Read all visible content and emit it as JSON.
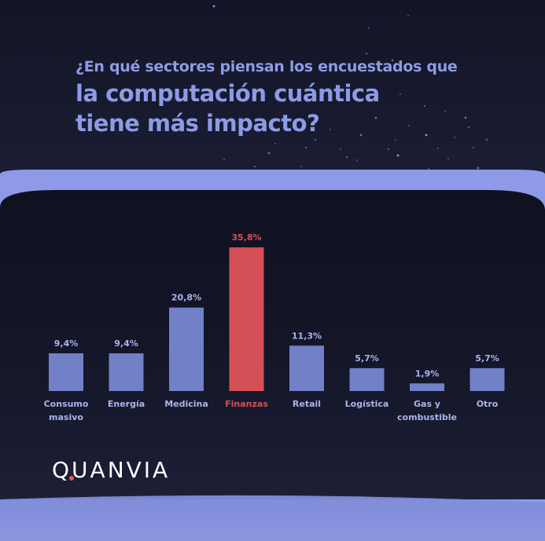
{
  "title": {
    "line1": "¿En qué sectores piensan los encuestados que",
    "line2": "la computación cuántica",
    "line3": "tiene más impacto?"
  },
  "brand": {
    "name": "QUANVIA",
    "accent_color": "#e0565a"
  },
  "colors": {
    "bar": "#7280c8",
    "highlight": "#d45056",
    "label": "#aab4ee",
    "title": "#8d9be6",
    "frame": "#8e9ae8"
  },
  "chart_data": {
    "type": "bar",
    "title": "",
    "xlabel": "",
    "ylabel": "",
    "ylim": [
      0,
      40
    ],
    "grid": false,
    "highlight_category": "Finanzas",
    "categories": [
      [
        "Consumo",
        "masivo"
      ],
      [
        "Energía"
      ],
      [
        "Medicina"
      ],
      [
        "Finanzas"
      ],
      [
        "Retail"
      ],
      [
        "Logística"
      ],
      [
        "Gas y",
        "combustible"
      ],
      [
        "Otro"
      ]
    ],
    "values": [
      9.4,
      9.4,
      20.8,
      35.8,
      11.3,
      5.7,
      1.9,
      5.7
    ],
    "value_labels": [
      "9,4%",
      "9,4%",
      "20,8%",
      "35,8%",
      "11,3%",
      "5,7%",
      "1,9%",
      "5,7%"
    ]
  }
}
